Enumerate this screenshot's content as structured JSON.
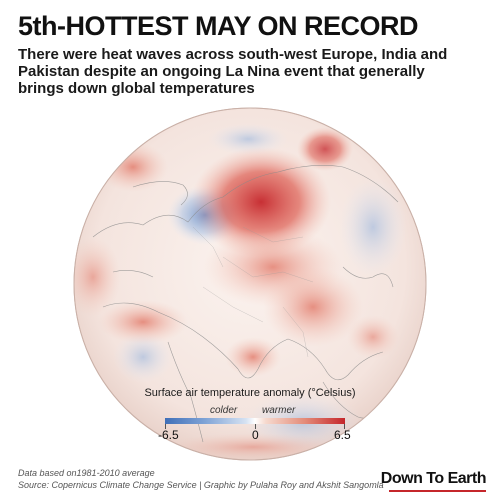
{
  "header": {
    "title": "5th-HOTTEST MAY ON RECORD",
    "subtitle": "There were heat waves across south-west Europe, India and Pakistan despite an ongoing La Nina event that generally brings down global temperatures"
  },
  "legend": {
    "title": "Surface air temperature anomaly (°Celsius)",
    "colder_label": "colder",
    "warmer_label": "warmer",
    "min_label": "-6.5",
    "mid_label": "0",
    "max_label": "6.5",
    "colors": {
      "cold": "#3f6fb8",
      "neutral": "#ffffff",
      "warm": "#c5262b"
    }
  },
  "footer": {
    "note": "Data based on1981-2010 average",
    "source": "Source:  Copernicus Climate Change Service  |  Graphic by Pulaha Roy and Akshit Sangomla",
    "logo": "Down To Earth"
  }
}
